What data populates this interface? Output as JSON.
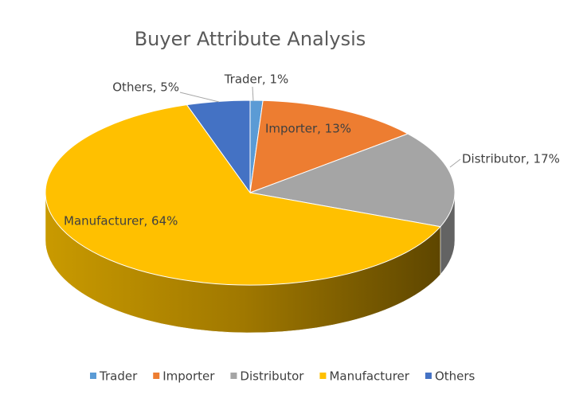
{
  "chart_data": {
    "type": "pie3d",
    "title": "Buyer Attribute Analysis",
    "categories": [
      "Trader",
      "Importer",
      "Distributor",
      "Manufacturer",
      "Others"
    ],
    "values": [
      1,
      13,
      17,
      64,
      5
    ],
    "value_labels": [
      "Trader, 1%",
      "Importer, 13%",
      "Distributor, 17%",
      "Manufacturer, 64%",
      "Others, 5%"
    ],
    "colors": [
      "#5b9bd5",
      "#ed7d31",
      "#a5a5a5",
      "#ffc000",
      "#4472c4"
    ],
    "legend": "bottom"
  }
}
